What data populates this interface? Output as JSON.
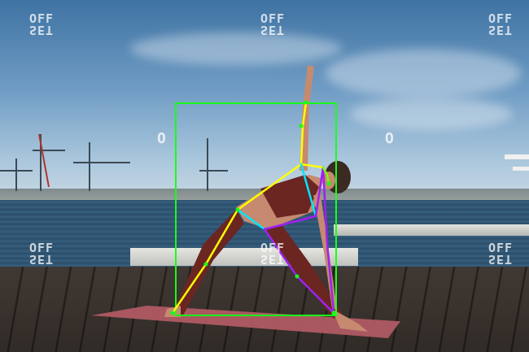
{
  "watermark": {
    "line1": "OFF",
    "line2": "SET",
    "zero": "O"
  },
  "detection": {
    "box_color": "#18ff18",
    "limb_colors": {
      "left": "#ffff00",
      "center": "#00e5ff",
      "right": "#a020f0",
      "face": "#7CFC00"
    }
  }
}
